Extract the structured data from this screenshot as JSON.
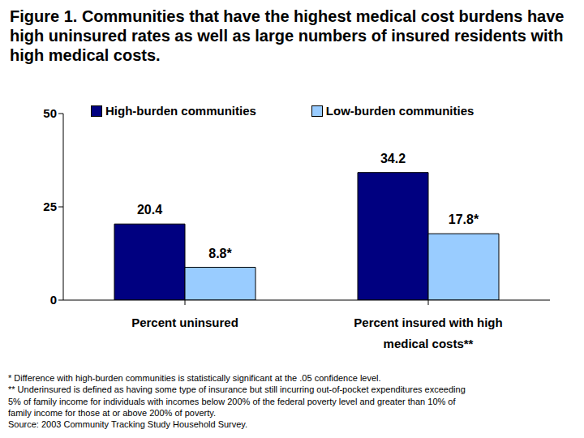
{
  "chart_data": {
    "type": "bar",
    "title": "Figure 1. Communities that have the highest medical cost burdens have high uninsured rates as well as large numbers of insured residents with high medical costs.",
    "categories": [
      "Percent uninsured",
      "Percent insured with high medical costs**"
    ],
    "series": [
      {
        "name": "High-burden communities",
        "color": "#000080",
        "values": [
          20.4,
          34.2
        ]
      },
      {
        "name": "Low-burden communities",
        "color": "#99ccff",
        "values": [
          8.8,
          17.8
        ],
        "value_labels": [
          "8.8*",
          "17.8*"
        ]
      }
    ],
    "ylim": [
      0,
      50
    ],
    "yticks": [
      0,
      25,
      50
    ],
    "grid": false,
    "legend": "top",
    "data_labels": true,
    "annotations": [
      "* Difference with high-burden communities is statistically significant at the .05 confidence level.",
      "** Underinsured is defined as having some type of insurance but still incurring out-of-pocket expenditures exceeding 5% of family income for individuals with incomes below 200% of the federal poverty level and greater than 10% of family income for those at or above 200% of poverty.",
      "Source: 2003 Community Tracking Study Household Survey."
    ]
  }
}
